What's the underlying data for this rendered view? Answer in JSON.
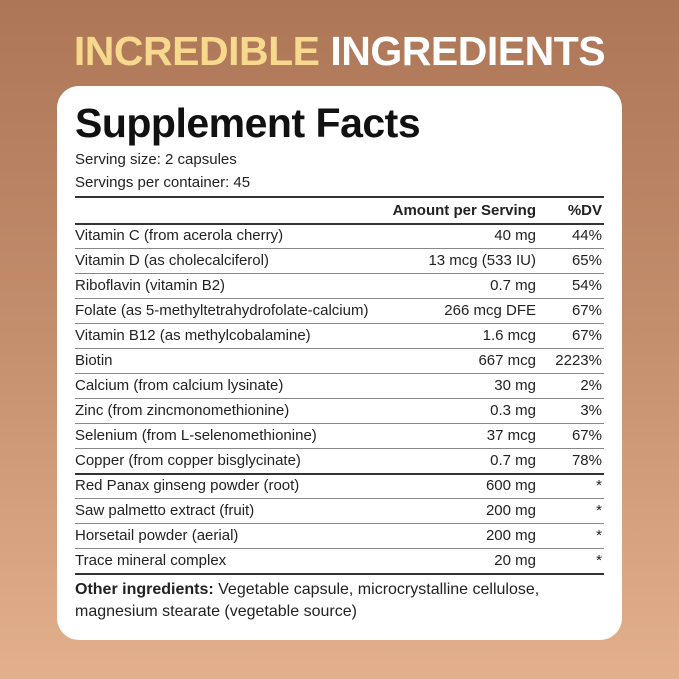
{
  "header": {
    "title_highlight": "INCREDIBLE",
    "title_rest": "INGREDIENTS"
  },
  "panel": {
    "title": "Supplement Facts",
    "serving_size": "Serving size: 2 capsules",
    "servings_per_container": "Servings per container: 45"
  },
  "table": {
    "columns": [
      "Amount per Serving",
      "%DV"
    ],
    "rows": [
      [
        "Vitamin C (from acerola cherry)",
        "40 mg",
        "44%"
      ],
      [
        "Vitamin D (as cholecalciferol)",
        "13 mcg (533 IU)",
        "65%"
      ],
      [
        "Riboflavin (vitamin B2)",
        "0.7 mg",
        "54%"
      ],
      [
        "Folate (as 5-methyltetrahydrofolate-calcium)",
        "266 mcg DFE",
        "67%"
      ],
      [
        "Vitamin B12 (as methylcobalamine)",
        "1.6 mcg",
        "67%"
      ],
      [
        "Biotin",
        "667 mcg",
        "2223%"
      ],
      [
        "Calcium (from calcium lysinate)",
        "30 mg",
        "2%"
      ],
      [
        "Zinc (from zincmonomethionine)",
        "0.3 mg",
        "3%"
      ],
      [
        "Selenium (from L-selenomethionine)",
        "37 mcg",
        "67%"
      ],
      [
        "Copper (from copper bisglycinate)",
        "0.7 mg",
        "78%"
      ],
      [
        "Red Panax ginseng powder (root)",
        "600 mg",
        "*"
      ],
      [
        "Saw palmetto extract (fruit)",
        "200 mg",
        "*"
      ],
      [
        "Horsetail powder (aerial)",
        "200 mg",
        "*"
      ],
      [
        "Trace mineral complex",
        "20 mg",
        "*"
      ]
    ]
  },
  "other_ingredients": {
    "label": "Other ingredients:",
    "text": "Vegetable capsule, microcrystalline cellulose, magnesium stearate (vegetable source)"
  }
}
